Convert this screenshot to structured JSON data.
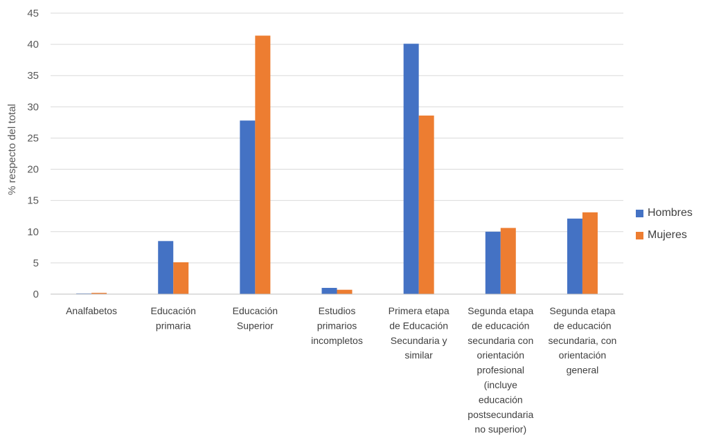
{
  "chart_data": {
    "type": "bar",
    "categories": [
      "Analfabetos",
      "Educación primaria",
      "Educación Superior",
      "Estudios primarios incompletos",
      "Primera etapa de Educación Secundaria y similar",
      "Segunda etapa de educación secundaria con orientación profesional (incluye educación postsecundaria no superior)",
      "Segunda etapa de educación secundaria, con orientación general"
    ],
    "category_lines": [
      [
        "Analfabetos"
      ],
      [
        "Educación",
        "primaria"
      ],
      [
        "Educación",
        "Superior"
      ],
      [
        "Estudios",
        "primarios",
        "incompletos"
      ],
      [
        "Primera etapa",
        "de Educación",
        "Secundaria y",
        "similar"
      ],
      [
        "Segunda etapa",
        "de educación",
        "secundaria con",
        "orientación",
        "profesional",
        "(incluye",
        "educación",
        "postsecundaria",
        "no superior)"
      ],
      [
        "Segunda etapa",
        "de educación",
        "secundaria, con",
        "orientación",
        "general"
      ]
    ],
    "series": [
      {
        "name": "Hombres",
        "color": "#4472C4",
        "values": [
          0.1,
          8.5,
          27.8,
          1.0,
          40.1,
          10.0,
          12.1
        ]
      },
      {
        "name": "Mujeres",
        "color": "#ED7D31",
        "values": [
          0.2,
          5.1,
          41.4,
          0.7,
          28.6,
          10.6,
          13.1
        ]
      }
    ],
    "ylabel": "% respecto del total",
    "xlabel": "",
    "ylim": [
      0,
      45
    ],
    "yticks": [
      0,
      5,
      10,
      15,
      20,
      25,
      30,
      35,
      40,
      45
    ],
    "grid": true,
    "legend_position": "right"
  }
}
